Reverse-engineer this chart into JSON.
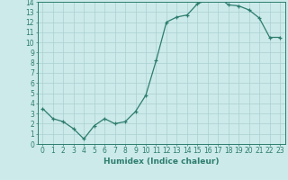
{
  "x": [
    0,
    1,
    2,
    3,
    4,
    5,
    6,
    7,
    8,
    9,
    10,
    11,
    12,
    13,
    14,
    15,
    16,
    17,
    18,
    19,
    20,
    21,
    22,
    23
  ],
  "y": [
    3.5,
    2.5,
    2.2,
    1.5,
    0.5,
    1.8,
    2.5,
    2.0,
    2.2,
    3.2,
    4.8,
    8.2,
    12.0,
    12.5,
    12.7,
    13.8,
    14.2,
    14.5,
    13.7,
    13.6,
    13.2,
    12.4,
    10.5,
    10.5
  ],
  "line_color": "#2d7d6e",
  "marker": "+",
  "marker_size": 3,
  "bg_color": "#cceaea",
  "grid_color_major": "#aad0d0",
  "grid_color_minor": "#bbdcdc",
  "xlabel": "Humidex (Indice chaleur)",
  "ylim": [
    0,
    14
  ],
  "xlim": [
    -0.5,
    23.5
  ],
  "yticks": [
    0,
    1,
    2,
    3,
    4,
    5,
    6,
    7,
    8,
    9,
    10,
    11,
    12,
    13,
    14
  ],
  "xticks": [
    0,
    1,
    2,
    3,
    4,
    5,
    6,
    7,
    8,
    9,
    10,
    11,
    12,
    13,
    14,
    15,
    16,
    17,
    18,
    19,
    20,
    21,
    22,
    23
  ],
  "tick_label_size": 5.5,
  "xlabel_size": 6.5,
  "axis_color": "#2d7d6e",
  "spine_color": "#2d7d6e",
  "linewidth": 0.9,
  "markeredgewidth": 0.9
}
